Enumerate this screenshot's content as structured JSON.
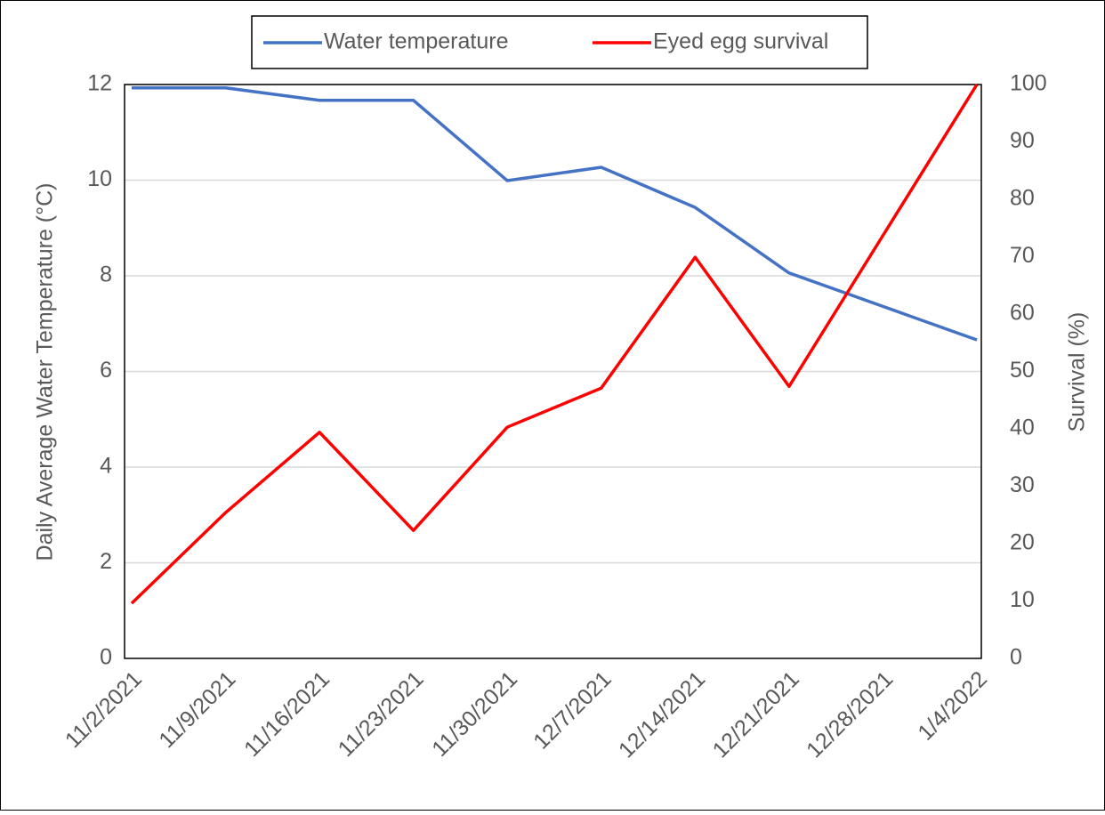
{
  "chart_data": {
    "type": "line",
    "categories": [
      "11/2/2021",
      "11/9/2021",
      "11/16/2021",
      "11/23/2021",
      "11/30/2021",
      "12/7/2021",
      "12/14/2021",
      "12/21/2021",
      "12/28/2021",
      "1/4/2022"
    ],
    "series": [
      {
        "name": "Water temperature",
        "color": "#4472c4",
        "values": [
          11.93,
          11.93,
          11.67,
          11.67,
          9.99,
          10.27,
          9.43,
          8.06,
          7.36,
          6.66
        ]
      },
      {
        "name": "Eyed egg survival",
        "color": "#ff0000",
        "axis": "y2",
        "values": [
          9.6,
          25.4,
          39.4,
          22.3,
          40.3,
          47.1,
          69.9,
          47.4,
          73.7,
          100
        ]
      }
    ],
    "y_label": "Daily Average Water Temperature (°C)",
    "y2_label": "Survival (%)",
    "ylim": [
      0,
      12
    ],
    "yticks": [
      0,
      2,
      4,
      6,
      8,
      10,
      12
    ],
    "y2lim": [
      0,
      100
    ],
    "y2ticks": [
      0,
      10,
      20,
      30,
      40,
      50,
      60,
      70,
      80,
      90,
      100
    ],
    "grid": true,
    "legend": "top"
  }
}
